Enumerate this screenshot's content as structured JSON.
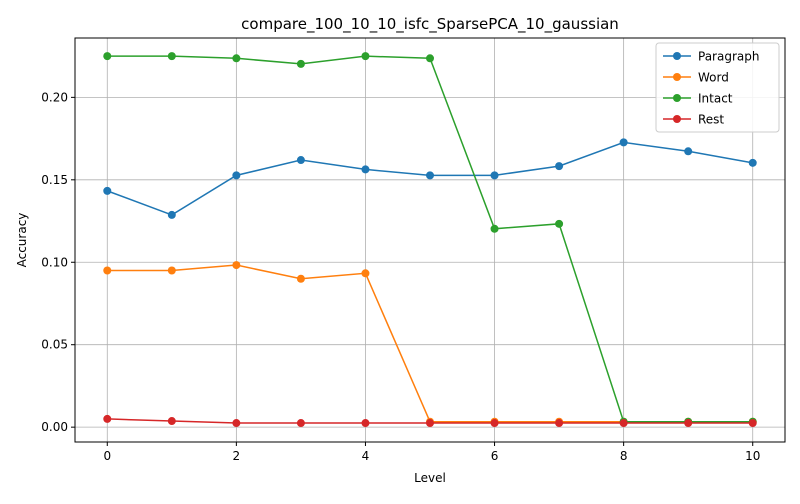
{
  "chart_data": {
    "type": "line",
    "title": "compare_100_10_10_isfc_SparsePCA_10_gaussian",
    "xlabel": "Level",
    "ylabel": "Accuracy",
    "xlim": [
      -0.5,
      10.5
    ],
    "ylim": [
      -0.009,
      0.236
    ],
    "xticks": [
      0,
      2,
      4,
      6,
      8,
      10
    ],
    "xtick_labels": [
      "0",
      "2",
      "4",
      "6",
      "8",
      "10"
    ],
    "yticks": [
      0.0,
      0.05,
      0.1,
      0.15,
      0.2
    ],
    "ytick_labels": [
      "0.00",
      "0.05",
      "0.10",
      "0.15",
      "0.20"
    ],
    "grid": true,
    "legend_position": "top-right",
    "x": [
      0,
      1,
      2,
      3,
      4,
      5,
      6,
      7,
      8,
      9,
      10
    ],
    "series": [
      {
        "name": "Paragraph",
        "color": "#1f77b4",
        "values": [
          0.1433,
          0.1287,
          0.1527,
          0.162,
          0.1563,
          0.1527,
          0.1527,
          0.1583,
          0.1727,
          0.1673,
          0.1603
        ]
      },
      {
        "name": "Word",
        "color": "#ff7f0e",
        "values": [
          0.095,
          0.095,
          0.0983,
          0.09,
          0.0933,
          0.0033,
          0.0033,
          0.0033,
          0.0033,
          0.0033,
          0.0033
        ]
      },
      {
        "name": "Intact",
        "color": "#2ca02c",
        "values": [
          0.225,
          0.225,
          0.2237,
          0.2203,
          0.225,
          0.2237,
          0.1203,
          0.1233,
          0.0033,
          0.0033,
          0.0033
        ]
      },
      {
        "name": "Rest",
        "color": "#d62728",
        "values": [
          0.005,
          0.0037,
          0.0025,
          0.0025,
          0.0025,
          0.0025,
          0.0025,
          0.0025,
          0.0025,
          0.0025,
          0.0025
        ]
      }
    ]
  }
}
